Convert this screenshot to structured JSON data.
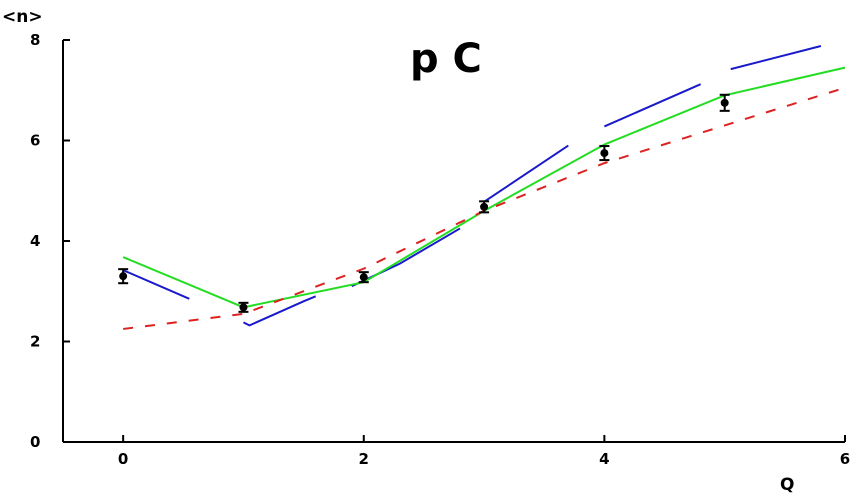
{
  "chart_data": {
    "type": "line",
    "title": "p C",
    "xlabel": "Q",
    "ylabel": "<n>",
    "xlim": [
      -0.5,
      6.0
    ],
    "ylim": [
      0,
      8
    ],
    "x_ticks": [
      0,
      2,
      4,
      6
    ],
    "y_ticks": [
      0,
      2,
      4,
      6,
      8
    ],
    "x_tick_labels": [
      "0",
      "2",
      "4",
      "6"
    ],
    "y_tick_labels": [
      "0",
      "2",
      "4",
      "6",
      "8"
    ],
    "grid": false,
    "legend": "none",
    "series": [
      {
        "style": "data-points",
        "color": "#000000",
        "points": [
          {
            "x": 0,
            "y": 3.3,
            "err": 0.1
          },
          {
            "x": 1,
            "y": 2.68,
            "err": 0.05
          },
          {
            "x": 2,
            "y": 3.28,
            "err": 0.06
          },
          {
            "x": 3,
            "y": 4.68,
            "err": 0.07
          },
          {
            "x": 4,
            "y": 5.75,
            "err": 0.1
          },
          {
            "x": 5,
            "y": 6.75,
            "err": 0.12
          }
        ]
      },
      {
        "style": "solid-segments",
        "color": "#1a1acc",
        "segments": [
          [
            [
              0,
              3.42
            ],
            [
              0.55,
              2.85
            ]
          ],
          [
            [
              1,
              2.38
            ],
            [
              1.05,
              2.32
            ],
            [
              1.5,
              2.8
            ],
            [
              1.6,
              2.9
            ]
          ],
          [
            [
              1.9,
              3.1
            ],
            [
              2.3,
              3.55
            ],
            [
              2.8,
              4.25
            ]
          ],
          [
            [
              3.0,
              4.78
            ],
            [
              3.7,
              5.9
            ]
          ],
          [
            [
              4.0,
              6.28
            ],
            [
              4.8,
              7.12
            ]
          ],
          [
            [
              5.05,
              7.42
            ],
            [
              5.8,
              7.88
            ]
          ]
        ]
      },
      {
        "style": "solid",
        "color": "#22dd22",
        "x": [
          0,
          1,
          2,
          3,
          4,
          5,
          6
        ],
        "y": [
          3.68,
          2.68,
          3.18,
          4.6,
          5.92,
          6.9,
          7.45
        ]
      },
      {
        "style": "dashed",
        "color": "#dd2222",
        "x": [
          0,
          1,
          2,
          3,
          4,
          5,
          6
        ],
        "y": [
          2.25,
          2.55,
          3.45,
          4.6,
          5.55,
          6.3,
          7.05
        ]
      }
    ]
  }
}
